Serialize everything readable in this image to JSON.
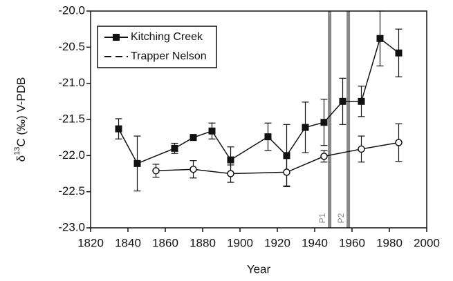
{
  "chart_data": {
    "type": "line",
    "x_label": "Year",
    "y_label": [
      "δ",
      "13",
      "C (‰) V-PDB"
    ],
    "xlim": [
      1820,
      2000
    ],
    "xticks": [
      1820,
      1840,
      1860,
      1880,
      1900,
      1920,
      1940,
      1960,
      1980,
      2000
    ],
    "ylim": [
      -23,
      -20
    ],
    "yticks": [
      {
        "value": -23,
        "label": "-23.0"
      },
      -22.5,
      {
        "value": -22,
        "label": "-22.0"
      },
      -21.5,
      {
        "value": -21,
        "label": "-21.0"
      },
      -20.5,
      {
        "value": -20,
        "label": "-20.0"
      }
    ],
    "legend": "upper left",
    "series": [
      {
        "name": "Kitching Creek",
        "color": "#111111",
        "marker": "square",
        "legend_line": "solid",
        "x": [
          1835,
          1845,
          1865,
          1875,
          1885,
          1895,
          1915,
          1925,
          1935,
          1945,
          1955,
          1965,
          1975,
          1985
        ],
        "values": [
          -21.63,
          -22.11,
          -21.9,
          -21.75,
          -21.66,
          -22.06,
          -21.74,
          -22.0,
          -21.61,
          -21.54,
          -21.25,
          -21.25,
          -20.38,
          -20.58
        ],
        "errors": [
          0.14,
          0.38,
          0.07,
          0.04,
          0.11,
          0.18,
          0.19,
          0.43,
          0.35,
          0.32,
          0.32,
          0.21,
          0.38,
          0.33
        ]
      },
      {
        "name": "Trapper Nelson",
        "color": "#111111",
        "marker": "circle",
        "legend_line": "dashed",
        "x": [
          1855,
          1875,
          1895,
          1925,
          1945,
          1965,
          1985
        ],
        "values": [
          -22.21,
          -22.19,
          -22.25,
          -22.23,
          -22.01,
          -21.91,
          -21.82
        ],
        "errors": [
          0.09,
          0.12,
          0.12,
          0.19,
          0.08,
          0.18,
          0.26
        ]
      }
    ],
    "annotations": [
      {
        "label": "P1",
        "x": 1948,
        "color": "#888888"
      },
      {
        "label": "P2",
        "x": 1958,
        "color": "#888888"
      }
    ]
  }
}
